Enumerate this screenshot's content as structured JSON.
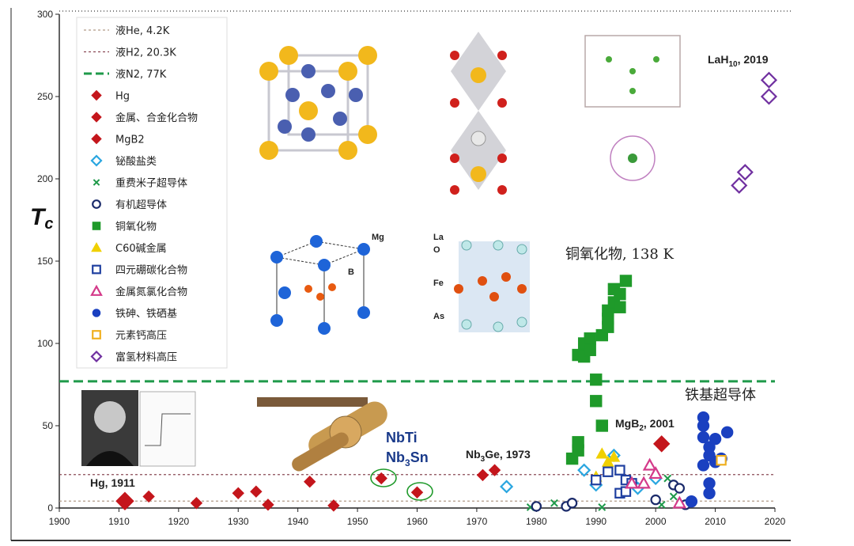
{
  "chart_data": {
    "type": "scatter",
    "title": "",
    "xlabel": "",
    "ylabel": "T",
    "ylabel_sub": "c",
    "xlim": [
      1900,
      2020
    ],
    "ylim": [
      0,
      300
    ],
    "xticks": [
      "1900",
      "1910",
      "1920",
      "1930",
      "1940",
      "1950",
      "1960",
      "1970",
      "1980",
      "1990",
      "2000",
      "2010",
      "2020"
    ],
    "yticks": [
      "0",
      "50",
      "100",
      "150",
      "200",
      "250",
      "300"
    ],
    "reference_lines": [
      {
        "name": "液He, 4.2K",
        "y": 4.2,
        "color": "#b09a86",
        "style": "dotted"
      },
      {
        "name": "液H2, 20.3K",
        "y": 20.3,
        "color": "#8a4a56",
        "style": "dotted"
      },
      {
        "name": "液N2, 77K",
        "y": 77,
        "color": "#1f9a4a",
        "style": "dashed"
      }
    ],
    "series": [
      {
        "name": "Hg",
        "marker": "diamond",
        "filled": true,
        "color": "#c4161c",
        "points": [
          [
            1911,
            4.2
          ]
        ]
      },
      {
        "name": "金属、合金化合物",
        "marker": "diamond",
        "filled": true,
        "color": "#c4161c",
        "points": [
          [
            1915,
            7
          ],
          [
            1923,
            3
          ],
          [
            1930,
            9
          ],
          [
            1933,
            10
          ],
          [
            1935,
            2
          ],
          [
            1942,
            16
          ],
          [
            1946,
            1.5
          ],
          [
            1954,
            18
          ],
          [
            1960,
            9.5
          ],
          [
            1971,
            20
          ],
          [
            1973,
            23
          ]
        ]
      },
      {
        "name": "MgB2",
        "marker": "diamond",
        "filled": true,
        "color": "#c4161c",
        "points": [
          [
            2001,
            39
          ]
        ]
      },
      {
        "name": "铋酸盐类",
        "marker": "diamond",
        "filled": false,
        "color": "#2aa6e0",
        "points": [
          [
            1975,
            13
          ],
          [
            1988,
            23
          ],
          [
            1990,
            14
          ],
          [
            1993,
            32
          ],
          [
            1997,
            12
          ],
          [
            2000,
            18
          ]
        ]
      },
      {
        "name": "重费米子超导体",
        "marker": "x",
        "filled": false,
        "color": "#1f9a4a",
        "points": [
          [
            1979,
            0.5
          ],
          [
            1983,
            3
          ],
          [
            1991,
            0.5
          ],
          [
            2001,
            2
          ],
          [
            2002,
            18
          ],
          [
            2003,
            7
          ]
        ]
      },
      {
        "name": "有机超导体",
        "marker": "circle",
        "filled": false,
        "color": "#1a2a6a",
        "points": [
          [
            1980,
            1
          ],
          [
            1985,
            1
          ],
          [
            1986,
            3
          ],
          [
            2000,
            5
          ],
          [
            2003,
            14
          ],
          [
            2004,
            12
          ],
          [
            2005,
            2
          ]
        ]
      },
      {
        "name": "铜氧化物",
        "marker": "square",
        "filled": true,
        "color": "#1f9a2a",
        "points": [
          [
            1986,
            30
          ],
          [
            1987,
            35
          ],
          [
            1987,
            40
          ],
          [
            1987,
            93
          ],
          [
            1988,
            92
          ],
          [
            1988,
            100
          ],
          [
            1989,
            103
          ],
          [
            1989,
            96
          ],
          [
            1990,
            65
          ],
          [
            1990,
            78
          ],
          [
            1991,
            50
          ],
          [
            1991,
            105
          ],
          [
            1992,
            110
          ],
          [
            1992,
            115
          ],
          [
            1992,
            120
          ],
          [
            1993,
            125
          ],
          [
            1993,
            133
          ],
          [
            1994,
            130
          ],
          [
            1994,
            122
          ],
          [
            1995,
            138
          ]
        ]
      },
      {
        "name": "C60碱金属",
        "marker": "triangle",
        "filled": true,
        "color": "#f0d000",
        "points": [
          [
            1991,
            33
          ],
          [
            1992,
            28
          ],
          [
            1993,
            31
          ],
          [
            1990,
            19
          ]
        ]
      },
      {
        "name": "四元硼碳化合物",
        "marker": "square",
        "filled": false,
        "color": "#2040a0",
        "points": [
          [
            1990,
            17
          ],
          [
            1992,
            22
          ],
          [
            1994,
            23
          ],
          [
            1994,
            9
          ],
          [
            1995,
            10
          ],
          [
            1995,
            17
          ],
          [
            1996,
            15
          ]
        ]
      },
      {
        "name": "金属氮氯化合物",
        "marker": "triangle",
        "filled": false,
        "color": "#d43a8a",
        "points": [
          [
            1996,
            15
          ],
          [
            1998,
            15
          ],
          [
            1999,
            26
          ],
          [
            2000,
            21
          ],
          [
            2004,
            3
          ]
        ]
      },
      {
        "name": "铁砷、铁硒基",
        "marker": "circle",
        "filled": true,
        "color": "#1a40c0",
        "points": [
          [
            2006,
            4
          ],
          [
            2008,
            26
          ],
          [
            2008,
            43
          ],
          [
            2008,
            55
          ],
          [
            2008,
            50
          ],
          [
            2009,
            15
          ],
          [
            2009,
            9
          ],
          [
            2009,
            37
          ],
          [
            2009,
            32
          ],
          [
            2010,
            28
          ],
          [
            2010,
            42
          ],
          [
            2011,
            30
          ],
          [
            2012,
            46
          ]
        ]
      },
      {
        "name": "元素钙高压",
        "marker": "square",
        "filled": false,
        "color": "#f0b020",
        "points": [
          [
            2011,
            29
          ]
        ]
      },
      {
        "name": "富氢材料高压",
        "marker": "diamond",
        "filled": false,
        "color": "#7030a0",
        "points": [
          [
            2014,
            196
          ],
          [
            2015,
            204
          ],
          [
            2019,
            250
          ],
          [
            2019,
            260
          ]
        ]
      }
    ],
    "annotations": [
      {
        "text": "Hg, 1911",
        "type": "plain"
      },
      {
        "text": "NbTi",
        "type": "blue"
      },
      {
        "text": "Nb3Sn",
        "type": "blue_sub"
      },
      {
        "text": "Nb3Ge, 1973",
        "type": "sub"
      },
      {
        "text": "MgB2, 2001",
        "type": "sub"
      },
      {
        "text": "LaH10, 2019",
        "type": "sub"
      },
      {
        "text": "铜氧化物, 138 K",
        "type": "serif"
      },
      {
        "text": "铁基超导体",
        "type": "serif"
      }
    ],
    "legend_position": "top-left",
    "grid": false
  }
}
